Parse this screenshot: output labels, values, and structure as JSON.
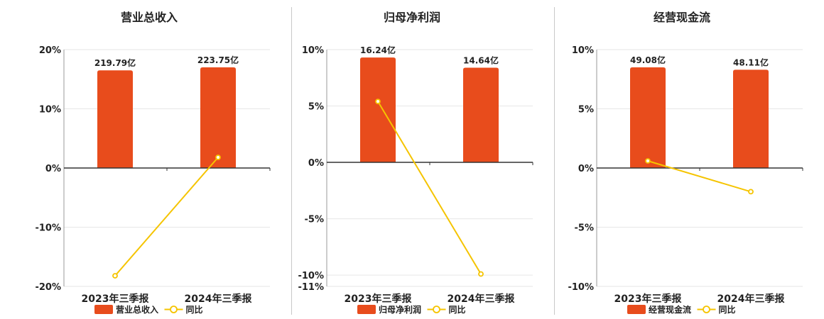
{
  "colors": {
    "bar": "#e84c1c",
    "line": "#f5c400",
    "axis": "#333333",
    "grid": "#e6e6e6",
    "text": "#222222"
  },
  "chart_data": [
    {
      "type": "bar",
      "title": "营业总收入",
      "categories": [
        "2023年三季报",
        "2024年三季报"
      ],
      "series": [
        {
          "name": "营业总收入",
          "kind": "bar",
          "values": [
            16.5,
            17.0
          ],
          "labels": [
            "219.79亿",
            "223.75亿"
          ]
        },
        {
          "name": "同比",
          "kind": "line",
          "values": [
            -18.2,
            1.8
          ]
        }
      ],
      "ylim": [
        -20,
        20
      ],
      "yticks": [
        20,
        10,
        0,
        -10,
        -20
      ],
      "ytick_labels": [
        "20%",
        "10%",
        "0%",
        "-10%",
        "-20%"
      ],
      "grid": true,
      "legend": "bottom-center"
    },
    {
      "type": "bar",
      "title": "归母净利润",
      "categories": [
        "2023年三季报",
        "2024年三季报"
      ],
      "series": [
        {
          "name": "归母净利润",
          "kind": "bar",
          "values": [
            9.3,
            8.4
          ],
          "labels": [
            "16.24亿",
            "14.64亿"
          ]
        },
        {
          "name": "同比",
          "kind": "line",
          "values": [
            5.4,
            -9.9
          ]
        }
      ],
      "ylim": [
        -11,
        10
      ],
      "yticks": [
        10,
        5,
        0,
        -5,
        -10,
        -11
      ],
      "ytick_labels": [
        "10%",
        "5%",
        "0%",
        "-5%",
        "-10%",
        "-11%"
      ],
      "grid": true,
      "legend": "bottom-center"
    },
    {
      "type": "bar",
      "title": "经营现金流",
      "categories": [
        "2023年三季报",
        "2024年三季报"
      ],
      "series": [
        {
          "name": "经营现金流",
          "kind": "bar",
          "values": [
            8.5,
            8.3
          ],
          "labels": [
            "49.08亿",
            "48.11亿"
          ]
        },
        {
          "name": "同比",
          "kind": "line",
          "values": [
            0.6,
            -2.0
          ]
        }
      ],
      "ylim": [
        -10,
        10
      ],
      "yticks": [
        10,
        5,
        0,
        -5,
        -10
      ],
      "ytick_labels": [
        "10%",
        "5%",
        "0%",
        "-5%",
        "-10%"
      ],
      "grid": true,
      "legend": "bottom-center"
    }
  ]
}
